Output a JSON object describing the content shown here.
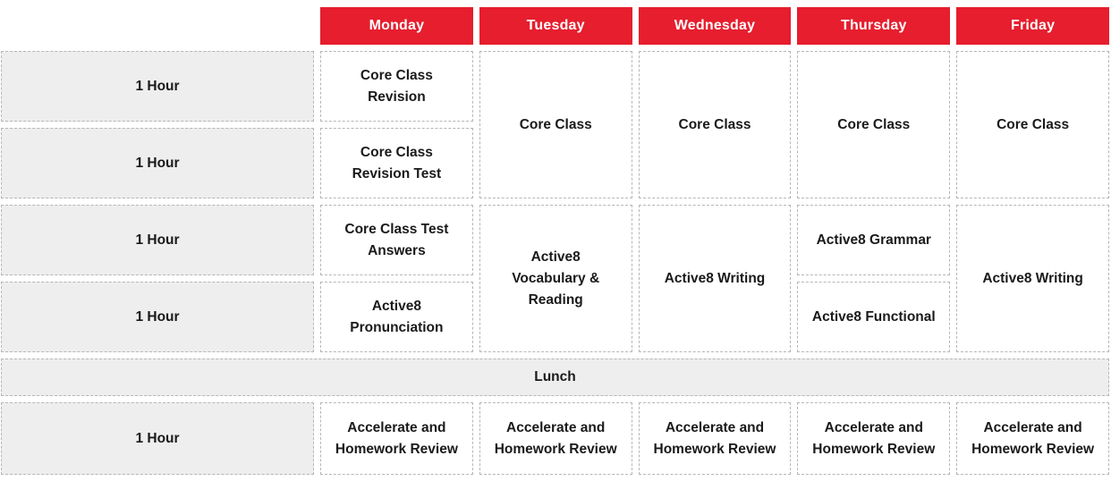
{
  "theme": {
    "header_bg": "#e61e2e",
    "header_text": "#ffffff",
    "cell_text": "#1a1a1a",
    "shaded_bg": "#eeeeee",
    "border_color": "#b6b6b6"
  },
  "time_label": "1 Hour",
  "lunch_label": "Lunch",
  "columns": [
    {
      "day": "Monday",
      "slots": [
        {
          "label": "Core Class\nRevision",
          "rows": 1
        },
        {
          "label": "Core Class\nRevision Test",
          "rows": 1
        },
        {
          "label": "Core Class Test\nAnswers",
          "rows": 1
        },
        {
          "label": "Active8\nPronunciation",
          "rows": 1
        },
        {
          "label": "Accelerate and\nHomework Review",
          "rows": 1
        }
      ]
    },
    {
      "day": "Tuesday",
      "slots": [
        {
          "label": "Core Class",
          "rows": 2
        },
        {
          "label": "Active8\nVocabulary &\nReading",
          "rows": 2
        },
        {
          "label": "Accelerate and\nHomework Review",
          "rows": 1
        }
      ]
    },
    {
      "day": "Wednesday",
      "slots": [
        {
          "label": "Core Class",
          "rows": 2
        },
        {
          "label": "Active8 Writing",
          "rows": 2
        },
        {
          "label": "Accelerate and\nHomework Review",
          "rows": 1
        }
      ]
    },
    {
      "day": "Thursday",
      "slots": [
        {
          "label": "Core Class",
          "rows": 2
        },
        {
          "label": "Active8 Grammar",
          "rows": 1
        },
        {
          "label": "Active8 Functional",
          "rows": 1
        },
        {
          "label": "Accelerate and\nHomework Review",
          "rows": 1
        }
      ]
    },
    {
      "day": "Friday",
      "slots": [
        {
          "label": "Core Class",
          "rows": 2
        },
        {
          "label": "Active8 Writing",
          "rows": 2
        },
        {
          "label": "Accelerate and\nHomework Review",
          "rows": 1
        }
      ]
    }
  ]
}
